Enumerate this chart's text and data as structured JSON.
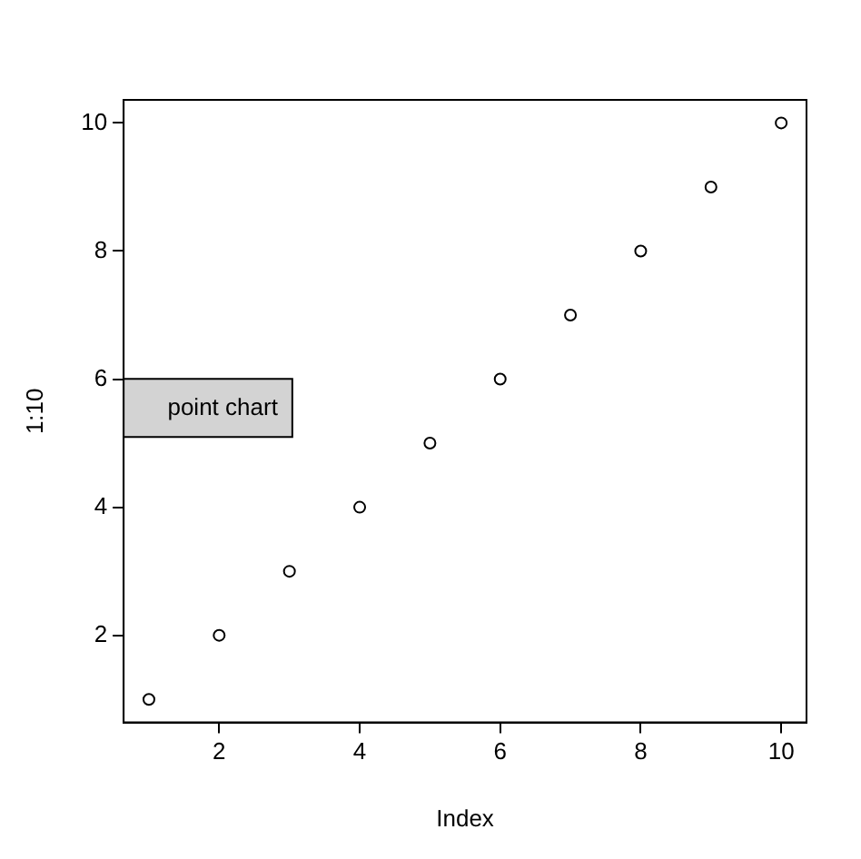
{
  "chart_data": {
    "type": "scatter",
    "xlabel": "Index",
    "ylabel": "1:10",
    "x": [
      1,
      2,
      3,
      4,
      5,
      6,
      7,
      8,
      9,
      10
    ],
    "series": [
      {
        "color": "#000000",
        "values": [
          1,
          2,
          3,
          4,
          5,
          6,
          7,
          8,
          9,
          10
        ]
      }
    ],
    "xlim": [
      0.64,
      10.36
    ],
    "ylim": [
      0.64,
      10.36
    ],
    "xticks": [
      2,
      4,
      6,
      8,
      10
    ],
    "yticks": [
      2,
      4,
      6,
      8,
      10
    ],
    "marker": "circle",
    "grid": false,
    "legend": false,
    "annotations": [
      "point chart"
    ]
  }
}
